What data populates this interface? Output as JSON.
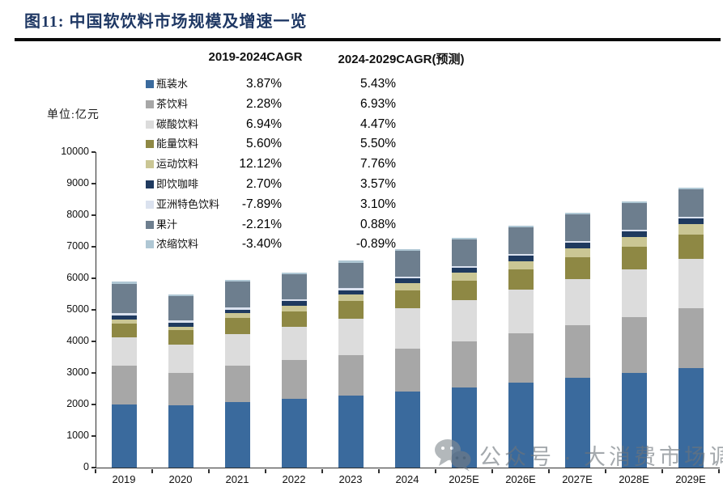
{
  "header": {
    "title": "图11: 中国软饮料市场规模及增速一览"
  },
  "unit_label": "单位:亿元",
  "legend": {
    "col1_header": "2019-2024CAGR",
    "col2_header": "2024-2029CAGR(预测)"
  },
  "watermark": {
    "icon": "wechat-logo",
    "text": "公众号 · 大消费市场调研"
  },
  "chart_data": {
    "type": "bar",
    "stacked": true,
    "title": "中国软饮料市场规模及增速一览",
    "unit_label": "单位:亿元",
    "xlabel": "",
    "ylabel": "亿元",
    "ylim": [
      0,
      10000
    ],
    "ytick_step": 1000,
    "grid": false,
    "legend_position": "upper-left overlay table with two CAGR columns",
    "categories": [
      "2019",
      "2020",
      "2021",
      "2022",
      "2023",
      "2024",
      "2025E",
      "2026E",
      "2027E",
      "2028E",
      "2029E"
    ],
    "series": [
      {
        "name": "瓶装水",
        "color": "#3a6a9d",
        "cagr_2019_2024": "3.87%",
        "cagr_2024_2029_forecast": "5.43%",
        "values": [
          2000,
          1970,
          2070,
          2170,
          2290,
          2420,
          2550,
          2690,
          2840,
          2990,
          3150
        ]
      },
      {
        "name": "茶饮料",
        "color": "#a7a7a7",
        "cagr_2019_2024": "2.28%",
        "cagr_2024_2029_forecast": "6.93%",
        "values": [
          1220,
          1020,
          1160,
          1240,
          1280,
          1360,
          1450,
          1560,
          1680,
          1780,
          1900
        ]
      },
      {
        "name": "碳酸饮料",
        "color": "#dcdcdc",
        "cagr_2019_2024": "6.94%",
        "cagr_2024_2029_forecast": "4.47%",
        "values": [
          900,
          910,
          990,
          1040,
          1160,
          1260,
          1320,
          1380,
          1450,
          1500,
          1570
        ]
      },
      {
        "name": "能量饮料",
        "color": "#8e8844",
        "cagr_2019_2024": "5.60%",
        "cagr_2024_2029_forecast": "5.50%",
        "values": [
          440,
          450,
          520,
          510,
          550,
          580,
          610,
          650,
          690,
          720,
          760
        ]
      },
      {
        "name": "运动饮料",
        "color": "#cac694",
        "cagr_2019_2024": "12.12%",
        "cagr_2024_2029_forecast": "7.76%",
        "values": [
          130,
          110,
          150,
          170,
          200,
          230,
          250,
          270,
          290,
          310,
          330
        ]
      },
      {
        "name": "即饮咖啡",
        "color": "#1f3a5f",
        "cagr_2019_2024": "2.70%",
        "cagr_2024_2029_forecast": "3.57%",
        "values": [
          130,
          130,
          120,
          140,
          145,
          150,
          155,
          160,
          170,
          175,
          180
        ]
      },
      {
        "name": "亚洲特色饮料",
        "color": "#dbe2ef",
        "cagr_2019_2024": "-7.89%",
        "cagr_2024_2029_forecast": "3.10%",
        "values": [
          85,
          70,
          75,
          65,
          58,
          56,
          58,
          60,
          61,
          63,
          65
        ]
      },
      {
        "name": "果汁",
        "color": "#6d7e8e",
        "cagr_2019_2024": "-2.21%",
        "cagr_2024_2029_forecast": "0.88%",
        "values": [
          920,
          775,
          800,
          790,
          815,
          820,
          830,
          835,
          845,
          850,
          855
        ]
      },
      {
        "name": "浓缩饮料",
        "color": "#afc7d4",
        "cagr_2019_2024": "-3.40%",
        "cagr_2024_2029_forecast": "-0.89%",
        "values": [
          70,
          65,
          65,
          65,
          60,
          59,
          58,
          58,
          57,
          57,
          56
        ]
      }
    ]
  }
}
